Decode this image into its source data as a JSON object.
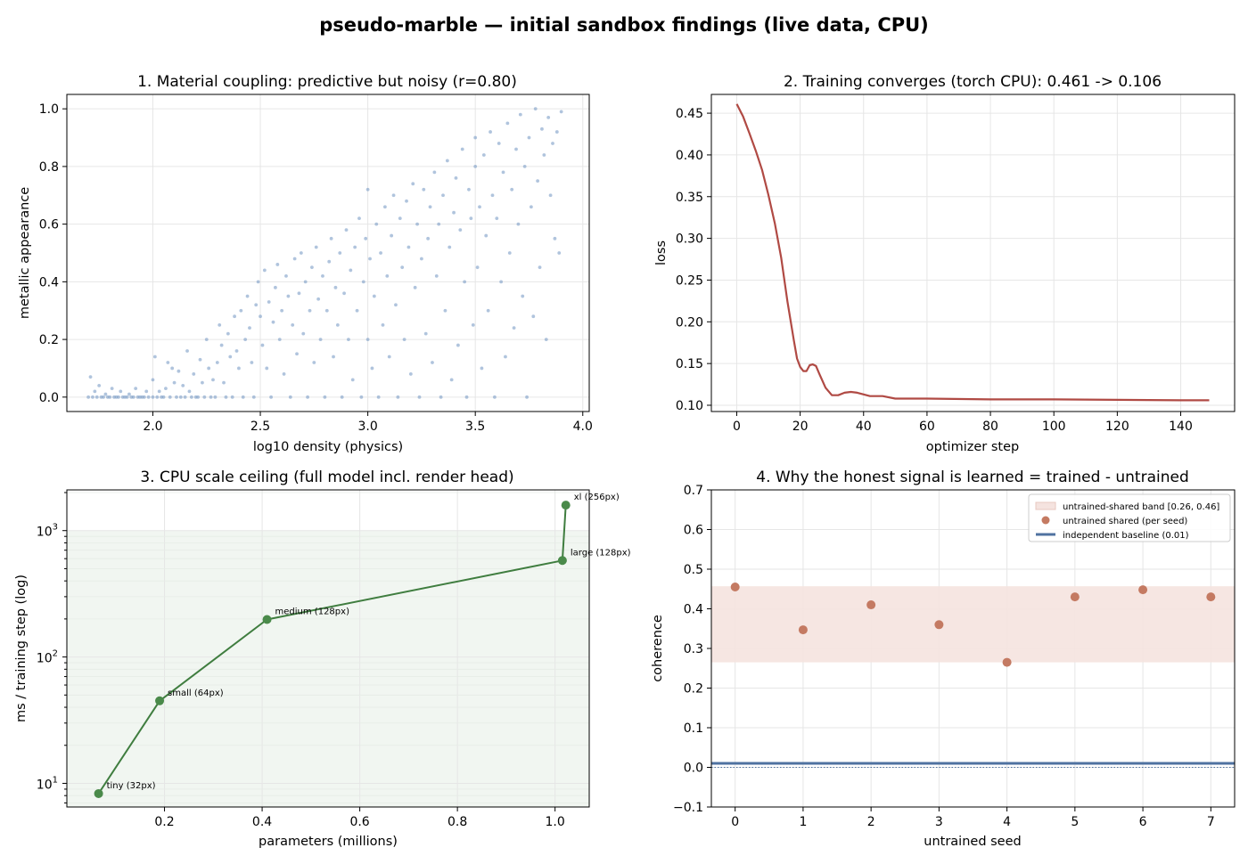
{
  "suptitle": "pseudo-marble — initial sandbox findings (live data, CPU)",
  "chart_data": [
    {
      "type": "scatter",
      "title": "1. Material coupling: predictive but noisy (r=0.80)",
      "xlabel": "log10 density  (physics)",
      "ylabel": "metallic appearance",
      "xlim": [
        1.6,
        4.03
      ],
      "ylim": [
        -0.05,
        1.05
      ],
      "xticks": [
        2.0,
        2.5,
        3.0,
        3.5,
        4.0
      ],
      "xtick_labels": [
        "2.0",
        "2.5",
        "3.0",
        "3.5",
        "4.0"
      ],
      "yticks": [
        0.0,
        0.2,
        0.4,
        0.6,
        0.8,
        1.0
      ],
      "ytick_labels": [
        "0.0",
        "0.2",
        "0.4",
        "0.6",
        "0.8",
        "1.0"
      ],
      "grid": true,
      "color": "#7b9cc6",
      "points": [
        [
          1.7,
          0.0
        ],
        [
          1.71,
          0.07
        ],
        [
          1.72,
          0.0
        ],
        [
          1.73,
          0.02
        ],
        [
          1.74,
          0.0
        ],
        [
          1.75,
          0.04
        ],
        [
          1.76,
          0.0
        ],
        [
          1.77,
          0.0
        ],
        [
          1.78,
          0.01
        ],
        [
          1.79,
          0.0
        ],
        [
          1.8,
          0.0
        ],
        [
          1.81,
          0.03
        ],
        [
          1.82,
          0.0
        ],
        [
          1.83,
          0.0
        ],
        [
          1.84,
          0.0
        ],
        [
          1.85,
          0.02
        ],
        [
          1.86,
          0.0
        ],
        [
          1.87,
          0.0
        ],
        [
          1.88,
          0.0
        ],
        [
          1.89,
          0.01
        ],
        [
          1.9,
          0.0
        ],
        [
          1.91,
          0.0
        ],
        [
          1.92,
          0.03
        ],
        [
          1.93,
          0.0
        ],
        [
          1.94,
          0.0
        ],
        [
          1.95,
          0.0
        ],
        [
          1.96,
          0.0
        ],
        [
          1.97,
          0.02
        ],
        [
          1.98,
          0.0
        ],
        [
          2.0,
          0.0
        ],
        [
          2.0,
          0.06
        ],
        [
          2.01,
          0.14
        ],
        [
          2.02,
          0.0
        ],
        [
          2.03,
          0.02
        ],
        [
          2.04,
          0.0
        ],
        [
          2.05,
          0.0
        ],
        [
          2.06,
          0.03
        ],
        [
          2.07,
          0.12
        ],
        [
          2.08,
          0.0
        ],
        [
          2.09,
          0.1
        ],
        [
          2.1,
          0.05
        ],
        [
          2.11,
          0.0
        ],
        [
          2.12,
          0.09
        ],
        [
          2.13,
          0.0
        ],
        [
          2.14,
          0.04
        ],
        [
          2.15,
          0.0
        ],
        [
          2.16,
          0.16
        ],
        [
          2.17,
          0.02
        ],
        [
          2.18,
          0.0
        ],
        [
          2.19,
          0.08
        ],
        [
          2.2,
          0.0
        ],
        [
          2.21,
          0.0
        ],
        [
          2.22,
          0.13
        ],
        [
          2.23,
          0.05
        ],
        [
          2.24,
          0.0
        ],
        [
          2.25,
          0.2
        ],
        [
          2.26,
          0.1
        ],
        [
          2.27,
          0.0
        ],
        [
          2.28,
          0.06
        ],
        [
          2.29,
          0.0
        ],
        [
          2.3,
          0.12
        ],
        [
          2.31,
          0.25
        ],
        [
          2.32,
          0.18
        ],
        [
          2.33,
          0.05
        ],
        [
          2.34,
          0.0
        ],
        [
          2.35,
          0.22
        ],
        [
          2.36,
          0.14
        ],
        [
          2.37,
          0.0
        ],
        [
          2.38,
          0.28
        ],
        [
          2.39,
          0.16
        ],
        [
          2.4,
          0.1
        ],
        [
          2.41,
          0.3
        ],
        [
          2.42,
          0.0
        ],
        [
          2.43,
          0.2
        ],
        [
          2.44,
          0.35
        ],
        [
          2.45,
          0.24
        ],
        [
          2.46,
          0.12
        ],
        [
          2.47,
          0.0
        ],
        [
          2.48,
          0.32
        ],
        [
          2.49,
          0.4
        ],
        [
          2.5,
          0.28
        ],
        [
          2.51,
          0.18
        ],
        [
          2.52,
          0.44
        ],
        [
          2.53,
          0.1
        ],
        [
          2.54,
          0.33
        ],
        [
          2.55,
          0.0
        ],
        [
          2.56,
          0.26
        ],
        [
          2.57,
          0.38
        ],
        [
          2.58,
          0.46
        ],
        [
          2.59,
          0.2
        ],
        [
          2.6,
          0.3
        ],
        [
          2.61,
          0.08
        ],
        [
          2.62,
          0.42
        ],
        [
          2.63,
          0.35
        ],
        [
          2.64,
          0.0
        ],
        [
          2.65,
          0.25
        ],
        [
          2.66,
          0.48
        ],
        [
          2.67,
          0.15
        ],
        [
          2.68,
          0.36
        ],
        [
          2.69,
          0.5
        ],
        [
          2.7,
          0.22
        ],
        [
          2.71,
          0.4
        ],
        [
          2.72,
          0.0
        ],
        [
          2.73,
          0.3
        ],
        [
          2.74,
          0.45
        ],
        [
          2.75,
          0.12
        ],
        [
          2.76,
          0.52
        ],
        [
          2.77,
          0.34
        ],
        [
          2.78,
          0.2
        ],
        [
          2.79,
          0.42
        ],
        [
          2.8,
          0.0
        ],
        [
          2.81,
          0.3
        ],
        [
          2.82,
          0.47
        ],
        [
          2.83,
          0.55
        ],
        [
          2.84,
          0.14
        ],
        [
          2.85,
          0.38
        ],
        [
          2.86,
          0.25
        ],
        [
          2.87,
          0.5
        ],
        [
          2.88,
          0.0
        ],
        [
          2.89,
          0.36
        ],
        [
          2.9,
          0.58
        ],
        [
          2.91,
          0.2
        ],
        [
          2.92,
          0.44
        ],
        [
          2.93,
          0.06
        ],
        [
          2.94,
          0.52
        ],
        [
          2.95,
          0.3
        ],
        [
          2.96,
          0.62
        ],
        [
          2.97,
          0.0
        ],
        [
          2.98,
          0.4
        ],
        [
          2.99,
          0.55
        ],
        [
          3.0,
          0.2
        ],
        [
          3.0,
          0.72
        ],
        [
          3.01,
          0.48
        ],
        [
          3.02,
          0.1
        ],
        [
          3.03,
          0.35
        ],
        [
          3.04,
          0.6
        ],
        [
          3.05,
          0.0
        ],
        [
          3.06,
          0.5
        ],
        [
          3.07,
          0.25
        ],
        [
          3.08,
          0.66
        ],
        [
          3.09,
          0.42
        ],
        [
          3.1,
          0.14
        ],
        [
          3.11,
          0.56
        ],
        [
          3.12,
          0.7
        ],
        [
          3.13,
          0.32
        ],
        [
          3.14,
          0.0
        ],
        [
          3.15,
          0.62
        ],
        [
          3.16,
          0.45
        ],
        [
          3.17,
          0.2
        ],
        [
          3.18,
          0.68
        ],
        [
          3.19,
          0.52
        ],
        [
          3.2,
          0.08
        ],
        [
          3.21,
          0.74
        ],
        [
          3.22,
          0.38
        ],
        [
          3.23,
          0.6
        ],
        [
          3.24,
          0.0
        ],
        [
          3.25,
          0.48
        ],
        [
          3.26,
          0.72
        ],
        [
          3.27,
          0.22
        ],
        [
          3.28,
          0.55
        ],
        [
          3.29,
          0.66
        ],
        [
          3.3,
          0.12
        ],
        [
          3.31,
          0.78
        ],
        [
          3.32,
          0.42
        ],
        [
          3.33,
          0.6
        ],
        [
          3.34,
          0.0
        ],
        [
          3.35,
          0.7
        ],
        [
          3.36,
          0.3
        ],
        [
          3.37,
          0.82
        ],
        [
          3.38,
          0.52
        ],
        [
          3.39,
          0.06
        ],
        [
          3.4,
          0.64
        ],
        [
          3.41,
          0.76
        ],
        [
          3.42,
          0.18
        ],
        [
          3.43,
          0.58
        ],
        [
          3.44,
          0.86
        ],
        [
          3.45,
          0.4
        ],
        [
          3.46,
          0.0
        ],
        [
          3.47,
          0.72
        ],
        [
          3.48,
          0.62
        ],
        [
          3.49,
          0.25
        ],
        [
          3.5,
          0.9
        ],
        [
          3.5,
          0.8
        ],
        [
          3.51,
          0.45
        ],
        [
          3.52,
          0.66
        ],
        [
          3.53,
          0.1
        ],
        [
          3.54,
          0.84
        ],
        [
          3.55,
          0.56
        ],
        [
          3.56,
          0.3
        ],
        [
          3.57,
          0.92
        ],
        [
          3.58,
          0.7
        ],
        [
          3.59,
          0.0
        ],
        [
          3.6,
          0.62
        ],
        [
          3.61,
          0.88
        ],
        [
          3.62,
          0.4
        ],
        [
          3.63,
          0.78
        ],
        [
          3.64,
          0.14
        ],
        [
          3.65,
          0.95
        ],
        [
          3.66,
          0.5
        ],
        [
          3.67,
          0.72
        ],
        [
          3.68,
          0.24
        ],
        [
          3.69,
          0.86
        ],
        [
          3.7,
          0.6
        ],
        [
          3.71,
          0.98
        ],
        [
          3.72,
          0.35
        ],
        [
          3.73,
          0.8
        ],
        [
          3.74,
          0.0
        ],
        [
          3.75,
          0.9
        ],
        [
          3.76,
          0.66
        ],
        [
          3.77,
          0.28
        ],
        [
          3.78,
          1.0
        ],
        [
          3.79,
          0.75
        ],
        [
          3.8,
          0.45
        ],
        [
          3.81,
          0.93
        ],
        [
          3.82,
          0.84
        ],
        [
          3.83,
          0.2
        ],
        [
          3.84,
          0.97
        ],
        [
          3.85,
          0.7
        ],
        [
          3.86,
          0.88
        ],
        [
          3.87,
          0.55
        ],
        [
          3.88,
          0.92
        ],
        [
          3.89,
          0.5
        ],
        [
          3.9,
          0.99
        ]
      ]
    },
    {
      "type": "line",
      "title": "2. Training converges (torch CPU): 0.461 -> 0.106",
      "xlabel": "optimizer step",
      "ylabel": "loss",
      "xlim": [
        -8,
        157
      ],
      "ylim": [
        0.0925,
        0.4725
      ],
      "xticks": [
        0,
        20,
        40,
        60,
        80,
        100,
        120,
        140
      ],
      "xtick_labels": [
        "0",
        "20",
        "40",
        "60",
        "80",
        "100",
        "120",
        "140"
      ],
      "yticks": [
        0.1,
        0.15,
        0.2,
        0.25,
        0.3,
        0.35,
        0.4,
        0.45
      ],
      "ytick_labels": [
        "0.10",
        "0.15",
        "0.20",
        "0.25",
        "0.30",
        "0.35",
        "0.40",
        "0.45"
      ],
      "grid": true,
      "color": "#b04a44",
      "points": [
        [
          0,
          0.461
        ],
        [
          2,
          0.446
        ],
        [
          4,
          0.426
        ],
        [
          6,
          0.405
        ],
        [
          8,
          0.382
        ],
        [
          10,
          0.352
        ],
        [
          12,
          0.318
        ],
        [
          14,
          0.277
        ],
        [
          16,
          0.224
        ],
        [
          18,
          0.178
        ],
        [
          19,
          0.156
        ],
        [
          20,
          0.146
        ],
        [
          21,
          0.141
        ],
        [
          22,
          0.141
        ],
        [
          23,
          0.148
        ],
        [
          24,
          0.149
        ],
        [
          25,
          0.147
        ],
        [
          26,
          0.138
        ],
        [
          28,
          0.121
        ],
        [
          30,
          0.112
        ],
        [
          32,
          0.112
        ],
        [
          34,
          0.115
        ],
        [
          36,
          0.116
        ],
        [
          38,
          0.115
        ],
        [
          40,
          0.113
        ],
        [
          42,
          0.111
        ],
        [
          46,
          0.111
        ],
        [
          50,
          0.108
        ],
        [
          60,
          0.108
        ],
        [
          80,
          0.107
        ],
        [
          100,
          0.107
        ],
        [
          120,
          0.1065
        ],
        [
          140,
          0.106
        ],
        [
          149,
          0.106
        ]
      ]
    },
    {
      "type": "line",
      "title": "3. CPU scale ceiling (full model incl. render head)",
      "xlabel": "parameters (millions)",
      "ylabel": "ms / training step (log)",
      "yscale": "log",
      "xlim": [
        0.0,
        1.07
      ],
      "ylim": [
        6.5,
        2100
      ],
      "xticks": [
        0.2,
        0.4,
        0.6,
        0.8,
        1.0
      ],
      "xtick_labels": [
        "0.2",
        "0.4",
        "0.6",
        "0.8",
        "1.0"
      ],
      "yticks": [
        10,
        100,
        1000
      ],
      "ytick_base": "10",
      "ytick_exponents": [
        "1",
        "2",
        "3"
      ],
      "shaded_band": [
        6.5,
        1000
      ],
      "grid": true,
      "color": "#3f7d3f",
      "points": [
        {
          "x": 0.065,
          "y": 8.3,
          "label": "tiny (32px)"
        },
        {
          "x": 0.19,
          "y": 45,
          "label": "small (64px)"
        },
        {
          "x": 0.41,
          "y": 198,
          "label": "medium (128px)"
        },
        {
          "x": 1.015,
          "y": 580,
          "label": "large (128px)"
        },
        {
          "x": 1.022,
          "y": 1590,
          "label": "xl (256px)"
        }
      ]
    },
    {
      "type": "scatter",
      "title": "4. Why the honest signal is learned = trained - untrained",
      "xlabel": "untrained seed",
      "ylabel": "coherence",
      "xlim": [
        -0.35,
        7.35
      ],
      "ylim": [
        -0.1,
        0.7
      ],
      "xticks": [
        0,
        1,
        2,
        3,
        4,
        5,
        6,
        7
      ],
      "xtick_labels": [
        "0",
        "1",
        "2",
        "3",
        "4",
        "5",
        "6",
        "7"
      ],
      "yticks": [
        -0.1,
        0.0,
        0.1,
        0.2,
        0.3,
        0.4,
        0.5,
        0.6,
        0.7
      ],
      "ytick_labels": [
        "−0.1",
        "0.0",
        "0.1",
        "0.2",
        "0.3",
        "0.4",
        "0.5",
        "0.6",
        "0.7"
      ],
      "grid": true,
      "band": [
        0.265,
        0.457
      ],
      "band_color": "#f5e3df",
      "point_color": "#c47a62",
      "baseline": 0.01,
      "baseline_color": "#4f72a0",
      "legend_placement": "top-right",
      "legend": [
        "untrained-shared band [0.26, 0.46]",
        "untrained shared (per seed)",
        "independent baseline (0.01)"
      ],
      "seeds": [
        0,
        1,
        2,
        3,
        4,
        5,
        6,
        7
      ],
      "values": [
        0.455,
        0.347,
        0.41,
        0.36,
        0.265,
        0.43,
        0.448,
        0.43
      ]
    }
  ]
}
